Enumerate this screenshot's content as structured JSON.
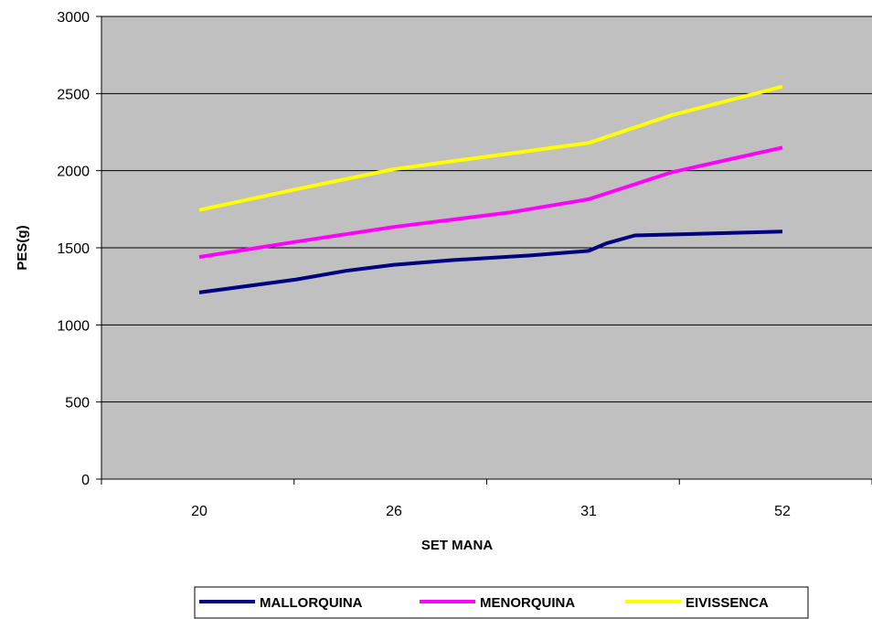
{
  "chart_data": {
    "type": "line",
    "title": "",
    "xlabel": "SET MANA",
    "ylabel": "PES(g)",
    "categories": [
      "20",
      "26",
      "31",
      "52"
    ],
    "ylim": [
      0,
      3000
    ],
    "yticks": [
      0,
      500,
      1000,
      1500,
      2000,
      2500,
      3000
    ],
    "grid": true,
    "plot_background": "#c0c0c0",
    "legend_position": "bottom",
    "series": [
      {
        "name": "MALLORQUINA",
        "color": "#000080",
        "x": [
          20,
          23,
          24.5,
          26,
          27.5,
          29.5,
          31,
          33,
          36,
          52
        ],
        "values": [
          1210,
          1295,
          1350,
          1390,
          1420,
          1450,
          1480,
          1530,
          1580,
          1605
        ]
      },
      {
        "name": "MENORQUINA",
        "color": "#ff00ff",
        "x": [
          20,
          23,
          26,
          29,
          31,
          40,
          52
        ],
        "values": [
          1440,
          1540,
          1635,
          1730,
          1815,
          1990,
          2150
        ]
      },
      {
        "name": "EIVISSENCA",
        "color": "#ffff00",
        "x": [
          20,
          23,
          26,
          28.5,
          31,
          40,
          52
        ],
        "values": [
          1745,
          1880,
          2010,
          2095,
          2180,
          2360,
          2545
        ]
      }
    ]
  }
}
